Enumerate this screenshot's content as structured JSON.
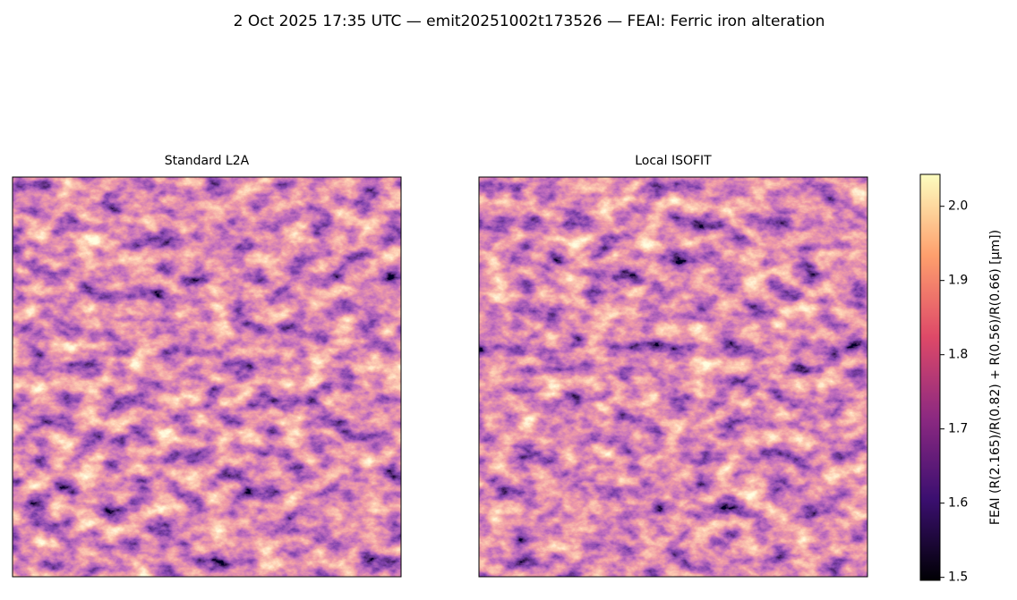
{
  "chart_data": {
    "type": "image",
    "title": "2 Oct 2025 17:35 UTC — emit20251002t173526 — FEAI: Ferric iron alteration",
    "panels": [
      {
        "title": "Standard L2A"
      },
      {
        "title": "Local ISOFIT"
      }
    ],
    "colormap": "magma",
    "colorbar": {
      "label": "FEAI  (R(2.165)/R(0.82) + R(0.56)/R(0.66)  [µm])",
      "ylim": [
        1.496,
        2.043
      ],
      "yticks": [
        1.5,
        1.6,
        1.7,
        1.8,
        1.9,
        {
          "value": 2,
          "label": "2.0"
        }
      ]
    }
  }
}
